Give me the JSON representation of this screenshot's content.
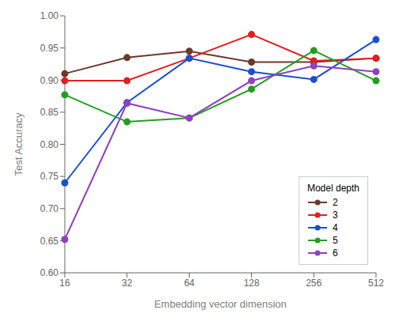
{
  "chart_data": {
    "type": "line",
    "categories": [
      "16",
      "32",
      "64",
      "128",
      "256",
      "512"
    ],
    "series": [
      {
        "name": "2",
        "color": "#6b3a2a",
        "values": [
          0.91,
          0.935,
          0.945,
          0.928,
          0.928,
          0.934
        ]
      },
      {
        "name": "3",
        "color": "#e02020",
        "values": [
          0.899,
          0.899,
          0.934,
          0.971,
          0.93,
          0.934
        ]
      },
      {
        "name": "4",
        "color": "#1a50d0",
        "values": [
          0.74,
          0.865,
          0.934,
          0.913,
          0.901,
          0.963
        ]
      },
      {
        "name": "5",
        "color": "#20a020",
        "values": [
          0.877,
          0.835,
          0.841,
          0.886,
          0.946,
          0.899
        ]
      },
      {
        "name": "6",
        "color": "#9040c0",
        "values": [
          0.652,
          0.864,
          0.841,
          0.899,
          0.922,
          0.913
        ]
      }
    ],
    "x_label": "Embedding vector dimension",
    "y_label": "Test Accuracy",
    "ylim": [
      0.6,
      1.0
    ],
    "yticks": [
      {
        "value": 0.6,
        "label": "0.60"
      },
      {
        "value": 0.65,
        "label": "0.65"
      },
      {
        "value": 0.7,
        "label": "0.70"
      },
      {
        "value": 0.75,
        "label": "0.75"
      },
      {
        "value": 0.8,
        "label": "0.80"
      },
      {
        "value": 0.85,
        "label": "0.85"
      },
      {
        "value": 0.9,
        "label": "0.90"
      },
      {
        "value": 0.95,
        "label": "0.95"
      },
      {
        "value": 1.0,
        "label": "1.00"
      }
    ],
    "legend_title": "Model depth",
    "legend": "lower right",
    "marker": "circle",
    "grid": false
  }
}
